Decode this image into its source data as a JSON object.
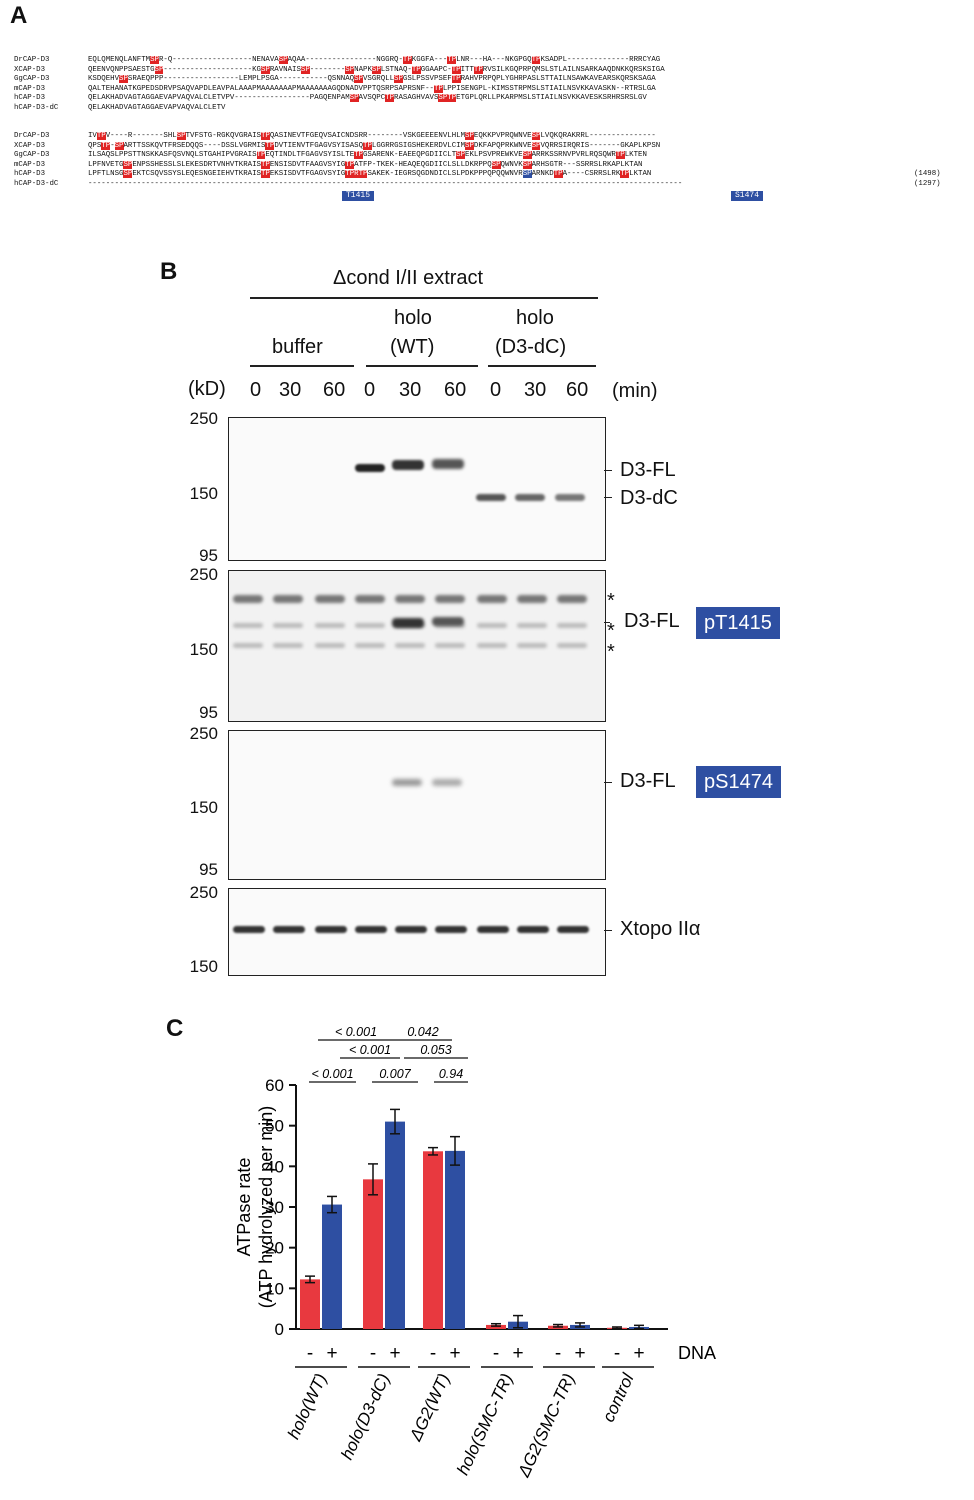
{
  "panel_a": {
    "letter": "A",
    "block1": [
      {
        "name": "DrCAP-D3",
        "seq": [
          [
            "EQLQMENQLANFTM",
            ""
          ],
          [
            "SP",
            "r"
          ],
          [
            "R-Q------------------NENAVA",
            ""
          ],
          [
            "SP",
            "r"
          ],
          [
            "AQAA----------------NGGRQ-",
            ""
          ],
          [
            "TP",
            "r"
          ],
          [
            "KGGFA---",
            ""
          ],
          [
            "TP",
            "r"
          ],
          [
            "LNR---HA---NKGPGQ",
            ""
          ],
          [
            "TP",
            "r"
          ],
          [
            "KSADPL--------------RRRCYAG",
            ""
          ]
        ]
      },
      {
        "name": "XCAP-D3",
        "seq": [
          [
            "QEENVQNPPSAESTG",
            ""
          ],
          [
            "SP",
            "r"
          ],
          [
            "--------------------KG",
            ""
          ],
          [
            "SP",
            "r"
          ],
          [
            "RAVNAIS",
            ""
          ],
          [
            "SP",
            "r"
          ],
          [
            "--------",
            ""
          ],
          [
            "SP",
            "r"
          ],
          [
            "NAPK",
            ""
          ],
          [
            "SP",
            "r"
          ],
          [
            "LSTNAQ-",
            ""
          ],
          [
            "TP",
            "r"
          ],
          [
            "GGAAPC-",
            ""
          ],
          [
            "TP",
            "r"
          ],
          [
            "ITT",
            ""
          ],
          [
            "TP",
            "r"
          ],
          [
            "RVSILKGQPRPQMSLSTLAILNSARKAAQDNKKQRSKSIGA",
            ""
          ]
        ]
      },
      {
        "name": "GgCAP-D3",
        "seq": [
          [
            "KSDQEHV",
            ""
          ],
          [
            "SP",
            "r"
          ],
          [
            "SRAEQPPP-----------------LEMPLPSGA-----------QSNNAQ",
            ""
          ],
          [
            "SP",
            "r"
          ],
          [
            "VSGRQLL",
            ""
          ],
          [
            "SP",
            "r"
          ],
          [
            "GSLPSSVPSEF",
            ""
          ],
          [
            "TP",
            "r"
          ],
          [
            "RAHVPRPQPLYGHRPASLSTTAILNSAWKAVEARSKQRSKSAGA",
            ""
          ]
        ]
      },
      {
        "name": "mCAP-D3",
        "seq": [
          [
            "QALTEHANATKGPEDSDRVPSAQVAPDLEAVPALAAAPMAAAAAAAPMAAAAAAAGQDNADVPPTQSRPSAPRSNF--",
            ""
          ],
          [
            "TP",
            "r"
          ],
          [
            "LPPISENGPL-KIMSSTRPMSLSTIAILNSVKKAVASKN--RTRSLGA",
            ""
          ]
        ]
      },
      {
        "name": "hCAP-D3",
        "seq": [
          [
            "QELAKHADVAGTAGGAEVAPVAQVALCLETVPV-----------------PAGQENPAM",
            ""
          ],
          [
            "SP",
            "r"
          ],
          [
            "AVSQPC",
            ""
          ],
          [
            "TP",
            "r"
          ],
          [
            "RASAGHVAVS",
            ""
          ],
          [
            "SPTP",
            "r"
          ],
          [
            "ETGPLQRLLPKARPMSLSTIAILNSVKKAVESKSRHRSRSLGV",
            ""
          ]
        ]
      },
      {
        "name": "hCAP-D3-dC",
        "seq": [
          [
            "QELAKHADVAGTAGGAEVAPVAQVALCLETV",
            ""
          ]
        ]
      }
    ],
    "block2": [
      {
        "name": "DrCAP-D3",
        "seq": [
          [
            "IV",
            ""
          ],
          [
            "TP",
            "r"
          ],
          [
            "V----R-------SHL",
            ""
          ],
          [
            "SP",
            "r"
          ],
          [
            "TVFSTG-RGKQVGRAIS",
            ""
          ],
          [
            "TP",
            "r"
          ],
          [
            "QASINEVTFGEQVSAICNDSRR--------VSKGEEEENVLHLM",
            ""
          ],
          [
            "SP",
            "r"
          ],
          [
            "EQKKPVPRQWNVE",
            ""
          ],
          [
            "SP",
            "r"
          ],
          [
            "LVQKQRAKRRL---------------",
            ""
          ]
        ]
      },
      {
        "name": "XCAP-D3",
        "seq": [
          [
            "QPS",
            ""
          ],
          [
            "TP",
            "r"
          ],
          [
            "-",
            ""
          ],
          [
            "SP",
            "r"
          ],
          [
            "ARTTSSKQVTFRSEDQQS----DSSLVGRMIS",
            ""
          ],
          [
            "TP",
            "r"
          ],
          [
            "DVTIENVTFGAGVSYISASQ",
            ""
          ],
          [
            "TP",
            "r"
          ],
          [
            "LGGRRGSIGSHEKERDVLCIM",
            ""
          ],
          [
            "SP",
            "r"
          ],
          [
            "DKFAPQPRKWNVE",
            ""
          ],
          [
            "SP",
            "r"
          ],
          [
            "VQRRSIRQRIS-------GKAPLKPSN",
            ""
          ]
        ]
      },
      {
        "name": "GgCAP-D3",
        "seq": [
          [
            "ILSAQSLPPSTTNSKKASFQSVNQLSTGAHIPVGRAIS",
            ""
          ],
          [
            "TP",
            "r"
          ],
          [
            "EQTINDLTFGAGVSYISLTE",
            ""
          ],
          [
            "TP",
            "r"
          ],
          [
            "GSARENK-EAEEQPGDIICLT",
            ""
          ],
          [
            "SP",
            "r"
          ],
          [
            "EKLPSVPREWKVE",
            ""
          ],
          [
            "SP",
            "r"
          ],
          [
            "ARRKSSRNVPVRLRQSQWR",
            ""
          ],
          [
            "TP",
            "r"
          ],
          [
            "LKTEN",
            ""
          ]
        ]
      },
      {
        "name": "mCAP-D3",
        "seq": [
          [
            "LPFNVETG",
            ""
          ],
          [
            "SP",
            "r"
          ],
          [
            "ENPSSHESSLSLEKESDRTVNHVTKRAIS",
            ""
          ],
          [
            "TP",
            "r"
          ],
          [
            "ENSISDVTFAAGVSYIG",
            ""
          ],
          [
            "TP",
            "r"
          ],
          [
            "ATFP-TKEK-HEAQEQGDIICLSLLDKRPPQ",
            ""
          ],
          [
            "SP",
            "r"
          ],
          [
            "QWNVK",
            ""
          ],
          [
            "SP",
            "r"
          ],
          [
            "ARHSGTR---SSRRSLRKAPLKTAN",
            ""
          ]
        ]
      },
      {
        "name": "hCAP-D3",
        "seq": [
          [
            "LPFTLNSG",
            ""
          ],
          [
            "SP",
            "r"
          ],
          [
            "EKTCSQVSSYSLEQESNGEIEHVTKRAIS",
            ""
          ],
          [
            "TP",
            "r"
          ],
          [
            "EKSISDVTFGAGVSYIG",
            ""
          ],
          [
            "TPRTP",
            "r"
          ],
          [
            "SAKEK-IEGRSQGDNDICLSLPDKPPPQPQQWNVR",
            ""
          ],
          [
            "SP",
            "b"
          ],
          [
            "ARNKD",
            ""
          ],
          [
            "TP",
            "r"
          ],
          [
            "A----CSRRSLRK",
            ""
          ],
          [
            "TP",
            "r"
          ],
          [
            "LKTAN",
            ""
          ]
        ],
        "len": "(1498)"
      },
      {
        "name": "hCAP-D3-dC",
        "seq": [
          [
            "--------------------------------------------------------------------------------------------------------------------------------------",
            ""
          ]
        ],
        "len": "(1297)"
      }
    ],
    "site_labels": [
      "T1415",
      "S1474"
    ]
  },
  "panel_b": {
    "letter": "B",
    "extract_label": "Δcond I/II extract",
    "groups": [
      {
        "line1": "",
        "line2": "buffer"
      },
      {
        "line1": "holo",
        "line2": "(WT)"
      },
      {
        "line1": "holo",
        "line2": "(D3-dC)"
      }
    ],
    "kd_label": "(kD)",
    "min_label": "(min)",
    "lanes": [
      "0",
      "30",
      "60",
      "0",
      "30",
      "60",
      "0",
      "30",
      "60"
    ],
    "blots": [
      {
        "mw": [
          "250",
          "150",
          "95"
        ],
        "labels": [
          "D3-FL",
          "D3-dC"
        ],
        "tag": ""
      },
      {
        "mw": [
          "250",
          "150",
          "95"
        ],
        "labels": [
          "D3-FL"
        ],
        "tag": "pT1415",
        "asterisk": "*"
      },
      {
        "mw": [
          "250",
          "150",
          "95"
        ],
        "labels": [
          "D3-FL"
        ],
        "tag": "pS1474"
      },
      {
        "mw": [
          "250",
          "150"
        ],
        "labels": [
          "Xtopo IIα"
        ],
        "tag": ""
      }
    ]
  },
  "panel_c": {
    "letter": "C",
    "colors": {
      "minus_dna": "#e8393f",
      "plus_dna": "#2e4fa2"
    },
    "chart_data": {
      "type": "bar",
      "categories": [
        "holo(WT)",
        "holo(D3-dC)",
        "ΔG2(WT)",
        "holo(SMC-TR)",
        "ΔG2(SMC-TR)",
        "control"
      ],
      "series": [
        {
          "name": "-",
          "values": [
            12.2,
            36.8,
            43.7,
            1.0,
            0.8,
            0.3
          ],
          "errors": [
            0.8,
            3.8,
            0.9,
            0.3,
            0.3,
            0.2
          ]
        },
        {
          "name": "+",
          "values": [
            30.6,
            51.0,
            43.8,
            1.8,
            1.0,
            0.5
          ],
          "errors": [
            2.0,
            3.0,
            3.5,
            1.5,
            0.5,
            0.4
          ]
        }
      ],
      "ylabel_line1": "ATPase rate",
      "ylabel_line2": "(ATP hydrolyzed per min)",
      "ylim": [
        0,
        60
      ],
      "yticks": [
        "0",
        "10",
        "20",
        "30",
        "40",
        "50",
        "60"
      ],
      "dna_label": "DNA",
      "pvalues": [
        "< 0.001",
        "0.042",
        "< 0.001",
        "0.053",
        "< 0.001",
        "0.007",
        "0.94"
      ]
    }
  }
}
